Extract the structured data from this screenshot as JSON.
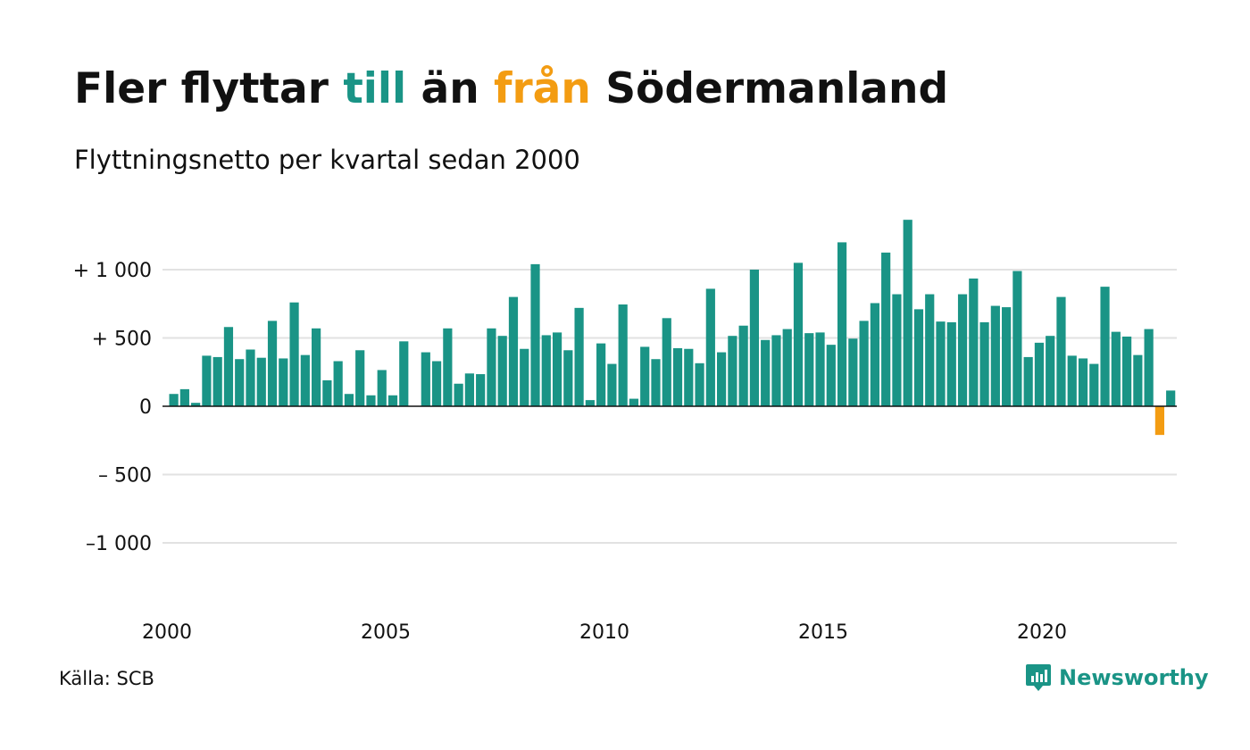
{
  "title": {
    "part1": "Fler flyttar ",
    "part2": "till",
    "part3": " än ",
    "part4": "från",
    "part5": " Södermanland"
  },
  "subtitle": "Flyttningsnetto per kvartal sedan 2000",
  "source": "Källa: SCB",
  "brand": {
    "name": "Newsworthy",
    "icon": "newsworthy-logo-icon"
  },
  "colors": {
    "positive": "#1a9486",
    "negative": "#f39c12",
    "grid": "#e2e2e2",
    "text": "#111111"
  },
  "chart_data": {
    "type": "bar",
    "title": "Fler flyttar till än från Södermanland",
    "subtitle": "Flyttningsnetto per kvartal sedan 2000",
    "xlabel": "",
    "ylabel": "",
    "ylim": [
      -1300,
      1380
    ],
    "grid": true,
    "yticks": [
      {
        "value": 1000,
        "label": "+ 1 000"
      },
      {
        "value": 500,
        "label": "+    500"
      },
      {
        "value": 0,
        "label": "0"
      },
      {
        "value": -500,
        "label": "–  500"
      },
      {
        "value": -1000,
        "label": "–1 000"
      }
    ],
    "xticks": [
      "2000",
      "2005",
      "2010",
      "2015",
      "2020"
    ],
    "start_year": 2000,
    "start_quarter": 1,
    "values": [
      90,
      125,
      25,
      370,
      360,
      580,
      345,
      415,
      355,
      625,
      350,
      760,
      375,
      570,
      190,
      330,
      90,
      410,
      80,
      265,
      80,
      475,
      0,
      395,
      330,
      570,
      165,
      240,
      235,
      570,
      515,
      800,
      420,
      1040,
      520,
      540,
      410,
      720,
      45,
      460,
      310,
      745,
      55,
      435,
      345,
      645,
      425,
      420,
      315,
      860,
      395,
      515,
      590,
      1000,
      485,
      520,
      565,
      1050,
      535,
      540,
      450,
      1200,
      495,
      625,
      755,
      1125,
      820,
      1365,
      710,
      820,
      620,
      615,
      820,
      935,
      615,
      735,
      725,
      990,
      360,
      465,
      515,
      800,
      370,
      350,
      310,
      875,
      545,
      510,
      375,
      565,
      -210,
      115
    ]
  }
}
